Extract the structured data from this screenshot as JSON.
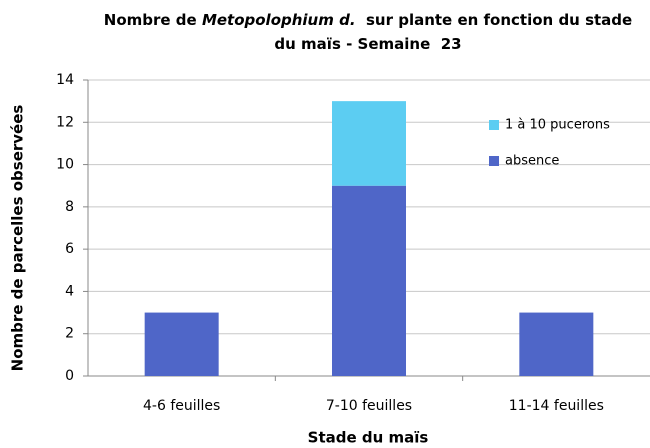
{
  "chart_data": {
    "type": "stacked_bar",
    "title": [
      [
        "Nombre de ",
        "Metopolophium d.",
        "  sur plante en fonction du stade"
      ],
      [
        "du maïs - Semaine  23"
      ]
    ],
    "x_label": "Stade du maïs",
    "y_label": "Nombre de parcelles observées",
    "categories": [
      "4-6 feuilles",
      "7-10 feuilles",
      "11-14 feuilles"
    ],
    "series": [
      {
        "name": "absence",
        "color": "#4f66c8",
        "values": [
          3,
          9,
          3
        ]
      },
      {
        "name": "1 à 10 pucerons",
        "color": "#5ccdf2",
        "values": [
          0,
          4,
          0
        ]
      }
    ],
    "ylim": [
      0,
      14
    ],
    "yticks": [
      0,
      2,
      4,
      6,
      8,
      10,
      12,
      14
    ],
    "grid": true
  }
}
